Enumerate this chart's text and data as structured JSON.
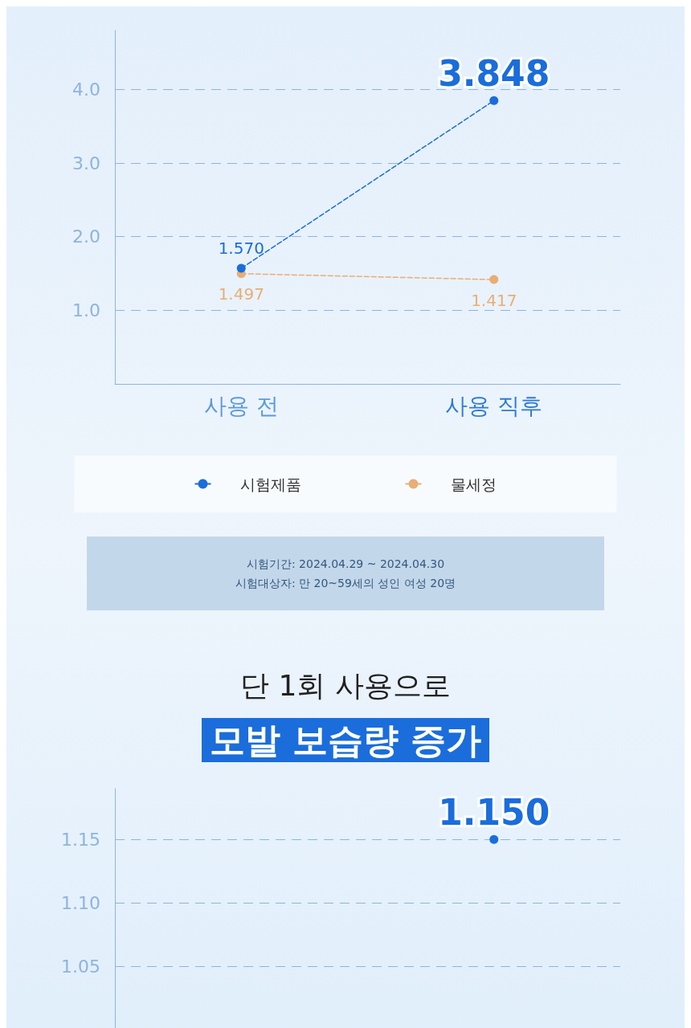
{
  "chart_data": [
    {
      "type": "line",
      "categories": [
        "사용 전",
        "사용 직후"
      ],
      "series": [
        {
          "name": "시험제품",
          "color": "#1a6ddb",
          "values": [
            1.57,
            3.848
          ],
          "value_labels": [
            "1.570",
            "3.848"
          ]
        },
        {
          "name": "물세정",
          "color": "#e8ae74",
          "values": [
            1.497,
            1.417
          ],
          "value_labels": [
            "1.497",
            "1.417"
          ]
        }
      ],
      "ylim": [
        0,
        4.8
      ],
      "yticks": [
        {
          "value": 1,
          "label": "1.0"
        },
        {
          "value": 2,
          "label": "2.0"
        },
        {
          "value": 3,
          "label": "3.0"
        },
        {
          "value": 4,
          "label": "4.0"
        }
      ],
      "grid": "y",
      "line_style": "dashed",
      "marker": "circle",
      "legend": "bottom",
      "annotations": [
        "시험기간: 2024.04.29 ~ 2024.04.30",
        "시험대상자: 만 20~59세의 성인 여성 20명"
      ]
    },
    {
      "type": "line",
      "subtitle": "단 1회 사용으로",
      "title": "모발 보습량 증가",
      "categories": [
        null,
        null
      ],
      "series": [
        {
          "color": "#1a6ddb",
          "values": [
            null,
            1.15
          ],
          "value_labels": [
            null,
            "1.150"
          ]
        }
      ],
      "ylim": [
        1.0,
        1.19
      ],
      "yticks": [
        1.05,
        {
          "value": 1.1,
          "label": "1.10"
        },
        1.15
      ],
      "grid": "y",
      "line_style": "dashed",
      "marker": "circle"
    }
  ]
}
